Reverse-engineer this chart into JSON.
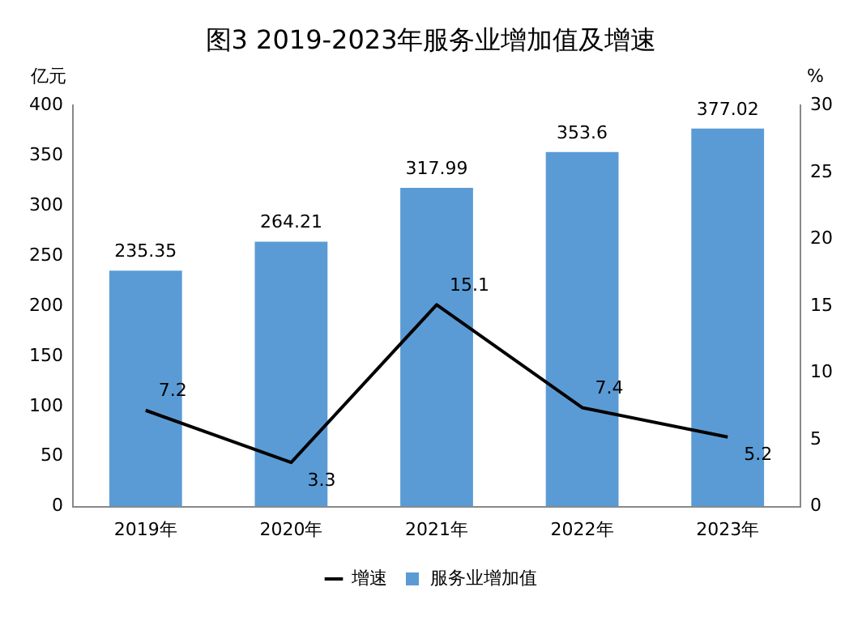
{
  "chart_data": {
    "type": "bar",
    "title": "图3 2019-2023年服务业增加值及增速",
    "ylabel": "亿元",
    "y2label": "%",
    "categories": [
      "2019年",
      "2020年",
      "2021年",
      "2022年",
      "2023年"
    ],
    "series": [
      {
        "name": "服务业增加值",
        "color": "#5b9bd5",
        "values": [
          235.35,
          264.21,
          317.99,
          353.6,
          377.02
        ]
      },
      {
        "name": "增速",
        "type": "line",
        "axis": "y2",
        "color": "#000000",
        "values": [
          7.2,
          3.3,
          15.1,
          7.4,
          5.2
        ]
      }
    ],
    "ylim": [
      0,
      400
    ],
    "yticks": [
      0,
      50,
      100,
      150,
      200,
      250,
      300,
      350,
      400
    ],
    "y2lim": [
      0,
      30
    ],
    "y2ticks": [
      0,
      5,
      10,
      15,
      20,
      25,
      30
    ],
    "grid": false,
    "legend": "bottom",
    "marker": "none",
    "data_labels": true
  }
}
